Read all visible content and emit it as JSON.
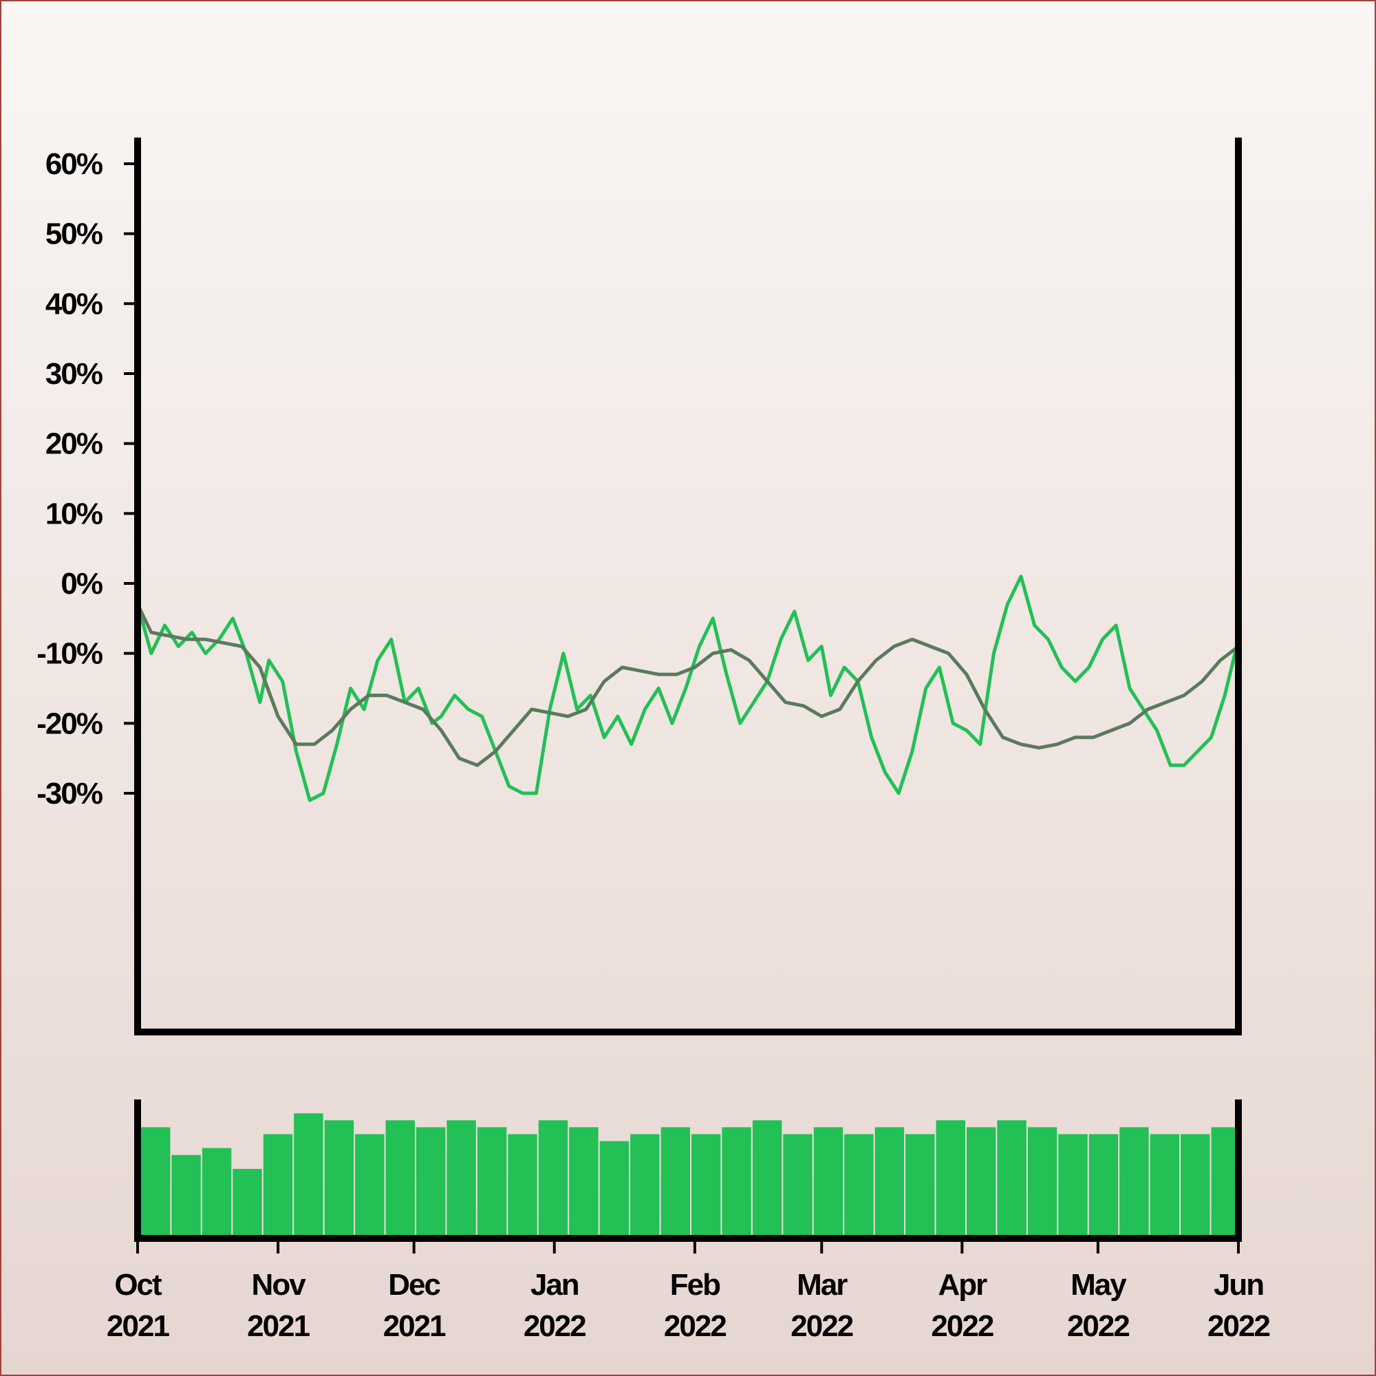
{
  "chart_data": {
    "type": "line",
    "title": "",
    "xlabel": "",
    "ylabel": "",
    "y_ticks": [
      "60%",
      "50%",
      "40%",
      "30%",
      "20%",
      "10%",
      "0%",
      "-10%",
      "-20%",
      "-30%"
    ],
    "y_tick_values": [
      60,
      50,
      40,
      30,
      20,
      10,
      0,
      -10,
      -20,
      -30
    ],
    "ylim": [
      -32,
      68
    ],
    "xlim": [
      "2021-10-01",
      "2022-06-01"
    ],
    "x_ticks": [
      {
        "line1": "Oct",
        "line2": "2021",
        "date": "2021-10-01"
      },
      {
        "line1": "Nov",
        "line2": "2021",
        "date": "2021-11-01"
      },
      {
        "line1": "Dec",
        "line2": "2021",
        "date": "2021-12-01"
      },
      {
        "line1": "Jan",
        "line2": "2022",
        "date": "2022-01-01"
      },
      {
        "line1": "Feb",
        "line2": "2022",
        "date": "2022-02-01"
      },
      {
        "line1": "Mar",
        "line2": "2022",
        "date": "2022-03-01"
      },
      {
        "line1": "Apr",
        "line2": "2022",
        "date": "2022-04-01"
      },
      {
        "line1": "May",
        "line2": "2022",
        "date": "2022-05-01"
      },
      {
        "line1": "Jun",
        "line2": "2022",
        "date": "2022-06-01"
      }
    ],
    "grid": false,
    "colors": {
      "daily": "#22c055",
      "smoothed": "#5b7a5c",
      "volume": "#22c055",
      "axis": "#000000",
      "frame": "#a0423a"
    },
    "series": [
      {
        "kind": "daily",
        "x": [
          "2021-10-01",
          "2021-10-04",
          "2021-10-07",
          "2021-10-10",
          "2021-10-13",
          "2021-10-16",
          "2021-10-19",
          "2021-10-22",
          "2021-10-25",
          "2021-10-28",
          "2021-10-30",
          "2021-11-02",
          "2021-11-05",
          "2021-11-08",
          "2021-11-11",
          "2021-11-14",
          "2021-11-17",
          "2021-11-20",
          "2021-11-23",
          "2021-11-26",
          "2021-11-29",
          "2021-12-02",
          "2021-12-05",
          "2021-12-07",
          "2021-12-10",
          "2021-12-13",
          "2021-12-16",
          "2021-12-19",
          "2021-12-22",
          "2021-12-25",
          "2021-12-28",
          "2021-12-31",
          "2022-01-03",
          "2022-01-06",
          "2022-01-09",
          "2022-01-12",
          "2022-01-15",
          "2022-01-18",
          "2022-01-21",
          "2022-01-24",
          "2022-01-27",
          "2022-01-30",
          "2022-02-02",
          "2022-02-05",
          "2022-02-08",
          "2022-02-11",
          "2022-02-14",
          "2022-02-17",
          "2022-02-20",
          "2022-02-23",
          "2022-02-26",
          "2022-03-01",
          "2022-03-03",
          "2022-03-06",
          "2022-03-09",
          "2022-03-12",
          "2022-03-15",
          "2022-03-18",
          "2022-03-21",
          "2022-03-24",
          "2022-03-27",
          "2022-03-30",
          "2022-04-02",
          "2022-04-05",
          "2022-04-08",
          "2022-04-11",
          "2022-04-14",
          "2022-04-17",
          "2022-04-20",
          "2022-04-23",
          "2022-04-26",
          "2022-04-29",
          "2022-05-02",
          "2022-05-05",
          "2022-05-08",
          "2022-05-11",
          "2022-05-14",
          "2022-05-17",
          "2022-05-20",
          "2022-05-23",
          "2022-05-26",
          "2022-05-29",
          "2022-06-01"
        ],
        "y": [
          -3,
          -10,
          -6,
          -9,
          -7,
          -10,
          -8,
          -5,
          -10,
          -17,
          -11,
          -14,
          -24,
          -31,
          -30,
          -23,
          -15,
          -18,
          -11,
          -8,
          -17,
          -15,
          -20,
          -19,
          -16,
          -18,
          -19,
          -24,
          -29,
          -30,
          -30,
          -18,
          -10,
          -18,
          -16,
          -22,
          -19,
          -23,
          -18,
          -15,
          -20,
          -15,
          -9,
          -5,
          -13,
          -20,
          -17,
          -14,
          -8,
          -4,
          -11,
          -9,
          -16,
          -12,
          -14,
          -22,
          -27,
          -30,
          -24,
          -15,
          -12,
          -20,
          -21,
          -23,
          -10,
          -3,
          1,
          -6,
          -8,
          -12,
          -14,
          -12,
          -8,
          -6,
          -15,
          -18,
          -21,
          -26,
          -26,
          -24,
          -22,
          -16,
          -8
        ]
      },
      {
        "kind": "smoothed",
        "x": [
          "2021-10-01",
          "2021-10-04",
          "2021-10-08",
          "2021-10-12",
          "2021-10-16",
          "2021-10-20",
          "2021-10-24",
          "2021-10-28",
          "2021-11-01",
          "2021-11-05",
          "2021-11-09",
          "2021-11-13",
          "2021-11-17",
          "2021-11-21",
          "2021-11-25",
          "2021-11-29",
          "2021-12-03",
          "2021-12-07",
          "2021-12-11",
          "2021-12-15",
          "2021-12-19",
          "2021-12-23",
          "2021-12-27",
          "2021-12-31",
          "2022-01-04",
          "2022-01-08",
          "2022-01-12",
          "2022-01-16",
          "2022-01-20",
          "2022-01-24",
          "2022-01-28",
          "2022-02-01",
          "2022-02-05",
          "2022-02-09",
          "2022-02-13",
          "2022-02-17",
          "2022-02-21",
          "2022-02-25",
          "2022-03-01",
          "2022-03-05",
          "2022-03-09",
          "2022-03-13",
          "2022-03-17",
          "2022-03-21",
          "2022-03-25",
          "2022-03-29",
          "2022-04-02",
          "2022-04-06",
          "2022-04-10",
          "2022-04-14",
          "2022-04-18",
          "2022-04-22",
          "2022-04-26",
          "2022-04-30",
          "2022-05-04",
          "2022-05-08",
          "2022-05-12",
          "2022-05-16",
          "2022-05-20",
          "2022-05-24",
          "2022-05-28",
          "2022-06-01"
        ],
        "y": [
          -3,
          -7,
          -7.5,
          -8,
          -8,
          -8.5,
          -9,
          -12,
          -19,
          -23,
          -23,
          -21,
          -18,
          -16,
          -16,
          -17,
          -18,
          -21,
          -25,
          -26,
          -24,
          -21,
          -18,
          -18.5,
          -19,
          -18,
          -14,
          -12,
          -12.5,
          -13,
          -13,
          -12,
          -10,
          -9.5,
          -11,
          -14,
          -17,
          -17.5,
          -19,
          -18,
          -14,
          -11,
          -9,
          -8,
          -9,
          -10,
          -13,
          -18,
          -22,
          -23,
          -23.5,
          -23,
          -22,
          -22,
          -21,
          -20,
          -18,
          -17,
          -16,
          -14,
          -11,
          -9
        ]
      }
    ],
    "volume": {
      "x": [
        "2021-10-01",
        "2021-10-08",
        "2021-10-15",
        "2021-10-22",
        "2021-10-29",
        "2021-11-05",
        "2021-11-12",
        "2021-11-19",
        "2021-11-26",
        "2021-12-03",
        "2021-12-10",
        "2021-12-17",
        "2021-12-24",
        "2021-12-31",
        "2022-01-07",
        "2022-01-14",
        "2022-01-21",
        "2022-01-28",
        "2022-02-04",
        "2022-02-11",
        "2022-02-18",
        "2022-02-25",
        "2022-03-04",
        "2022-03-11",
        "2022-03-18",
        "2022-03-25",
        "2022-04-01",
        "2022-04-08",
        "2022-04-15",
        "2022-04-22",
        "2022-04-29",
        "2022-05-06",
        "2022-05-13",
        "2022-05-20",
        "2022-05-27",
        "2022-06-01"
      ],
      "values": [
        0.8,
        0.6,
        0.65,
        0.5,
        0.75,
        0.9,
        0.85,
        0.75,
        0.85,
        0.8,
        0.85,
        0.8,
        0.75,
        0.85,
        0.8,
        0.7,
        0.75,
        0.8,
        0.75,
        0.8,
        0.85,
        0.75,
        0.8,
        0.75,
        0.8,
        0.75,
        0.85,
        0.8,
        0.85,
        0.8,
        0.75,
        0.75,
        0.8,
        0.75,
        0.75,
        0.8
      ]
    }
  }
}
